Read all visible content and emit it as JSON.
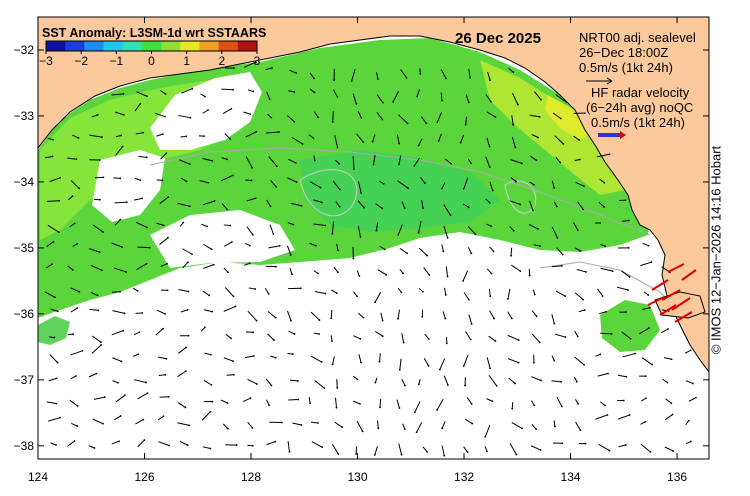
{
  "map": {
    "date": "26 Dec 2025",
    "colorbar": {
      "title": "SST Anomaly: L3SM-1d wrt SSTAARS",
      "min": -3,
      "max": 3,
      "ticks": [
        "−3",
        "−2",
        "−1",
        "0",
        "1",
        "2",
        "3"
      ],
      "colors": [
        "#1010a0",
        "#1a3fd8",
        "#1e8cf0",
        "#20c8f0",
        "#30e0b0",
        "#40e040",
        "#90e030",
        "#e8e820",
        "#f0a020",
        "#e05010",
        "#b01010"
      ]
    },
    "legend": {
      "nrt_line1": "NRT00 adj. sealevel",
      "nrt_line2": "26−Dec 18:00Z",
      "nrt_scale": "0.5m/s (1kt 24h)",
      "hf_line1": "HF radar velocity",
      "hf_line2": "(6−24h avg) noQC",
      "hf_scale": "0.5m/s (1kt 24h)"
    },
    "x_ticks": [
      "124",
      "126",
      "128",
      "130",
      "132",
      "134",
      "136"
    ],
    "y_ticks": [
      "−32",
      "−33",
      "−34",
      "−35",
      "−36",
      "−37",
      "−38"
    ],
    "lon_range": [
      124,
      136.6
    ],
    "lat_range": [
      -38.2,
      -31.5
    ],
    "credit": "© IMOS 12−Jan−2026 14:16 Hobart",
    "colors": {
      "land": "#fbc99b",
      "sst_mid": "#5ad63c",
      "sst_light": "#8ee83a",
      "sst_warm": "#d6ec30",
      "current_arrow": "#000000",
      "hf_arrow": "#e00000"
    }
  }
}
